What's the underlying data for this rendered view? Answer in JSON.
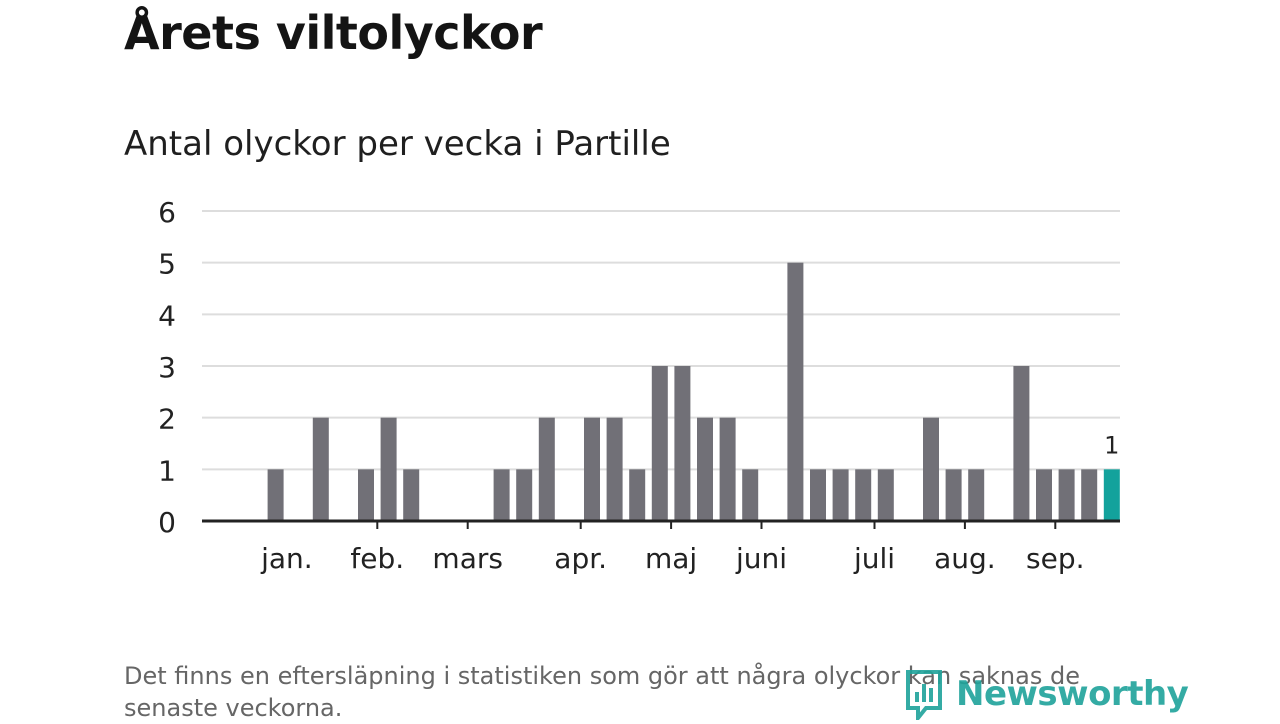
{
  "header": {
    "title": "Årets viltolyckor",
    "subtitle": "Antal olyckor per vecka i Partille"
  },
  "footnote": "Det finns en eftersläpning i statistiken som gör att några olyckor kan saknas de senaste veckorna.",
  "brand": {
    "name": "Newsworthy",
    "color": "#1fa39b"
  },
  "colors": {
    "bar": "#717077",
    "highlight": "#13a29c",
    "grid": "#dddddd",
    "axis": "#222222"
  },
  "chart_data": {
    "type": "bar",
    "title": "Antal olyckor per vecka i Partille",
    "xlabel": "",
    "ylabel": "",
    "ylim": [
      0,
      6
    ],
    "yticks": [
      0,
      1,
      2,
      3,
      4,
      5,
      6
    ],
    "grid": true,
    "weeks": [
      1,
      2,
      3,
      4,
      5,
      6,
      7,
      8,
      9,
      10,
      11,
      12,
      13,
      14,
      15,
      16,
      17,
      18,
      19,
      20,
      21,
      22,
      23,
      24,
      25,
      26,
      27,
      28,
      29,
      30,
      31,
      32,
      33,
      34,
      35,
      36,
      37,
      38,
      39,
      40
    ],
    "values": [
      0,
      1,
      0,
      2,
      0,
      1,
      2,
      1,
      0,
      0,
      0,
      1,
      1,
      2,
      0,
      2,
      2,
      1,
      3,
      3,
      2,
      2,
      1,
      0,
      5,
      1,
      1,
      1,
      1,
      0,
      2,
      1,
      1,
      0,
      3,
      1,
      1,
      1,
      1,
      0
    ],
    "highlight_week": 39,
    "highlight_label": "1",
    "month_labels": [
      {
        "label": "jan.",
        "week": 3
      },
      {
        "label": "feb.",
        "week": 7
      },
      {
        "label": "mars",
        "week": 11
      },
      {
        "label": "apr.",
        "week": 16
      },
      {
        "label": "maj",
        "week": 20
      },
      {
        "label": "juni",
        "week": 24
      },
      {
        "label": "juli",
        "week": 29
      },
      {
        "label": "aug.",
        "week": 33
      },
      {
        "label": "sep.",
        "week": 37
      }
    ],
    "month_ticks": [
      7,
      11,
      16,
      20,
      24,
      29,
      33,
      37
    ]
  }
}
